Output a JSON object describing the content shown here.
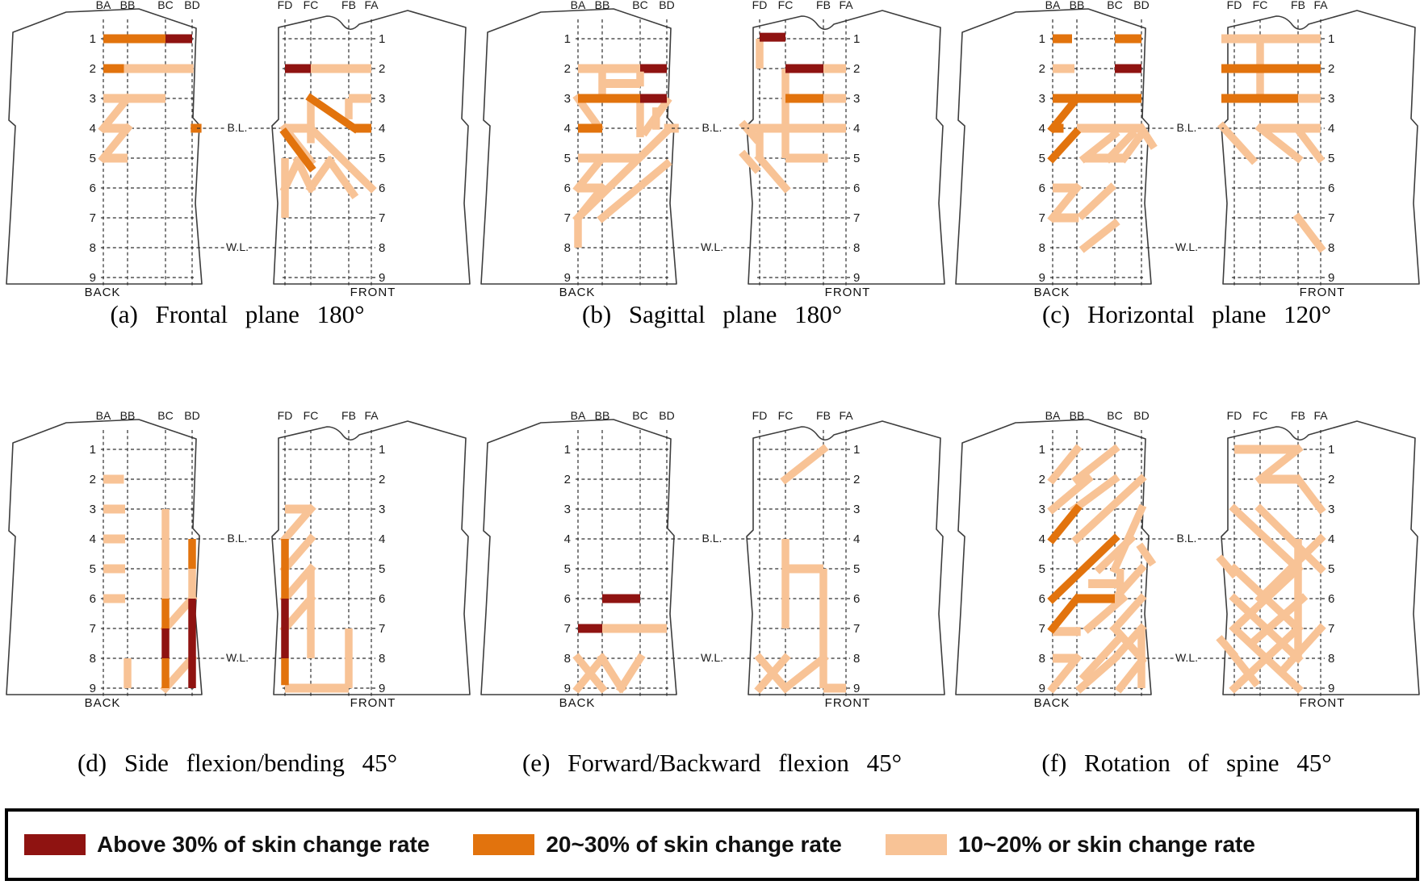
{
  "colors": {
    "high": "#8f1311",
    "mid": "#e2730d",
    "low": "#f8c396",
    "outline": "#3d3d3d",
    "grid": "#2e2e2e",
    "text": "#1a1a1a"
  },
  "labels": {
    "back": "BACK",
    "front": "FRONT",
    "bust_line": "B.L.",
    "waist_line": "W.L.",
    "back_columns": [
      "BA",
      "BB",
      "BC",
      "BD"
    ],
    "front_columns": [
      "FD",
      "FC",
      "FB",
      "FA"
    ],
    "rows": [
      "1",
      "2",
      "3",
      "4",
      "5",
      "6",
      "7",
      "8",
      "9"
    ]
  },
  "legend": {
    "items": [
      {
        "color_key": "high",
        "label": "Above 30% of skin change rate"
      },
      {
        "color_key": "mid",
        "label": "20~30% of skin change rate"
      },
      {
        "color_key": "low",
        "label": "10~20% or skin change rate"
      }
    ]
  },
  "panels": [
    {
      "id": "a",
      "caption": "(a) Frontal plane 180°",
      "back_segments": [
        [
          "mid",
          0,
          1,
          2,
          1
        ],
        [
          "high",
          2,
          1,
          3,
          1
        ],
        [
          "mid",
          0,
          2,
          0.85,
          2
        ],
        [
          "low",
          0.85,
          2,
          3.05,
          2
        ],
        [
          "low",
          0,
          3,
          2,
          3
        ],
        [
          "low",
          1,
          3,
          0,
          4
        ],
        [
          "low",
          0,
          4,
          1,
          4
        ],
        [
          "low",
          1,
          4,
          0,
          5
        ],
        [
          "low",
          0,
          5,
          1,
          5
        ],
        [
          "mid",
          2.95,
          4,
          3.35,
          4
        ]
      ],
      "front_segments": [
        [
          "high",
          0,
          2,
          1,
          2
        ],
        [
          "low",
          1,
          2,
          3,
          2
        ],
        [
          "low",
          2,
          3,
          3,
          3
        ],
        [
          "low",
          1,
          3,
          1,
          4.5
        ],
        [
          "low",
          2,
          3,
          2,
          3.7
        ],
        [
          "low",
          0,
          4,
          1.1,
          4
        ],
        [
          "low",
          0,
          4,
          1,
          5.1
        ],
        [
          "low",
          1,
          4,
          3,
          6
        ],
        [
          "low",
          0,
          5,
          0,
          7
        ],
        [
          "low",
          0,
          6,
          0.5,
          5.1
        ],
        [
          "low",
          0.5,
          5.1,
          1,
          6
        ],
        [
          "low",
          1,
          6,
          1.5,
          5.1
        ],
        [
          "low",
          1.5,
          5.1,
          2.2,
          6.2
        ],
        [
          "mid",
          1,
          3,
          2.25,
          4
        ],
        [
          "mid",
          2.25,
          4,
          3,
          4
        ],
        [
          "mid",
          0,
          4.15,
          1,
          5.3
        ]
      ]
    },
    {
      "id": "b",
      "caption": "(b) Sagittal plane 180°",
      "back_segments": [
        [
          "low",
          0,
          2,
          2,
          2
        ],
        [
          "high",
          2,
          2,
          3,
          2
        ],
        [
          "low",
          1,
          2,
          1,
          3
        ],
        [
          "low",
          1,
          2.5,
          2,
          2.5
        ],
        [
          "low",
          2,
          2.1,
          2,
          2.6
        ],
        [
          "low",
          0,
          3,
          0.85,
          3.95
        ],
        [
          "low",
          2,
          3.1,
          2,
          4.3
        ],
        [
          "low",
          3,
          3.1,
          2.2,
          4.1
        ],
        [
          "low",
          2.6,
          3.3,
          2.6,
          4.05
        ],
        [
          "low",
          2.9,
          4,
          3.45,
          4
        ],
        [
          "low",
          0,
          5,
          2,
          5
        ],
        [
          "low",
          3,
          4.1,
          0,
          7
        ],
        [
          "low",
          3,
          5.2,
          1,
          7
        ],
        [
          "low",
          1,
          5,
          0,
          6
        ],
        [
          "low",
          0,
          6,
          1,
          6
        ],
        [
          "low",
          1,
          6,
          0,
          7
        ],
        [
          "low",
          0,
          7,
          0,
          8
        ],
        [
          "mid",
          0,
          3,
          2,
          3
        ],
        [
          "high",
          2,
          3,
          3,
          3
        ],
        [
          "mid",
          0,
          4,
          1,
          4
        ]
      ],
      "front_segments": [
        [
          "low",
          0,
          1,
          0,
          2
        ],
        [
          "low",
          2,
          2,
          3,
          2
        ],
        [
          "low",
          2,
          3,
          3,
          3
        ],
        [
          "low",
          1,
          2,
          1,
          5
        ],
        [
          "low",
          -0.5,
          4,
          3,
          4
        ],
        [
          "low",
          0,
          4,
          0,
          5
        ],
        [
          "low",
          1,
          5,
          2.2,
          5
        ],
        [
          "low",
          0,
          5,
          1,
          6
        ],
        [
          "low",
          -0.6,
          3.9,
          -0.15,
          4.35
        ],
        [
          "low",
          -0.6,
          4.9,
          -0.15,
          5.35
        ],
        [
          "high",
          0,
          0.95,
          1,
          0.95
        ],
        [
          "high",
          1,
          2,
          2,
          2
        ],
        [
          "mid",
          1,
          3,
          2,
          3
        ]
      ]
    },
    {
      "id": "c",
      "caption": "(c) Horizontal plane 120°",
      "back_segments": [
        [
          "low",
          0,
          2,
          0.9,
          2
        ],
        [
          "low",
          1,
          4,
          3,
          4
        ],
        [
          "low",
          3,
          4,
          3.4,
          4.55
        ],
        [
          "low",
          2,
          4.2,
          1.2,
          5
        ],
        [
          "low",
          1.2,
          5,
          2.4,
          5
        ],
        [
          "low",
          2.65,
          4.2,
          1.85,
          5
        ],
        [
          "low",
          3,
          4.2,
          2.35,
          5
        ],
        [
          "low",
          0,
          6,
          1,
          6
        ],
        [
          "low",
          1,
          6,
          0,
          7
        ],
        [
          "low",
          0,
          7,
          1.05,
          7
        ],
        [
          "low",
          1.9,
          6,
          1.15,
          6.9
        ],
        [
          "low",
          2,
          7.2,
          1.2,
          8
        ],
        [
          "mid",
          0,
          1,
          0.8,
          1
        ],
        [
          "mid",
          2,
          1,
          3,
          1
        ],
        [
          "high",
          2,
          2,
          3,
          2
        ],
        [
          "mid",
          0,
          3,
          3,
          3
        ],
        [
          "mid",
          1,
          3,
          0,
          4
        ],
        [
          "mid",
          0,
          4,
          0.45,
          4
        ],
        [
          "mid",
          0.95,
          4.15,
          0,
          5
        ]
      ],
      "front_segments": [
        [
          "low",
          -0.5,
          1,
          3,
          1
        ],
        [
          "low",
          1,
          1,
          1,
          3
        ],
        [
          "low",
          2,
          3,
          3,
          3
        ],
        [
          "low",
          1,
          4,
          3,
          4
        ],
        [
          "low",
          -0.45,
          3.95,
          0.7,
          5.05
        ],
        [
          "low",
          1,
          4,
          2,
          5
        ],
        [
          "low",
          2.05,
          4.1,
          2.95,
          5
        ],
        [
          "low",
          2,
          7,
          3,
          8
        ],
        [
          "mid",
          -0.5,
          2,
          3,
          2
        ],
        [
          "mid",
          -0.5,
          3,
          2,
          3
        ]
      ]
    },
    {
      "id": "d",
      "caption": "(d) Side flexion/bending 45°",
      "back_segments": [
        [
          "low",
          0,
          2,
          0.85,
          2
        ],
        [
          "low",
          0,
          3,
          0.9,
          3
        ],
        [
          "low",
          0,
          4,
          0.9,
          4
        ],
        [
          "low",
          0,
          5,
          0.9,
          5
        ],
        [
          "low",
          0,
          6,
          0.9,
          6
        ],
        [
          "low",
          2,
          3,
          2,
          6
        ],
        [
          "low",
          3,
          5,
          3,
          6
        ],
        [
          "low",
          3,
          6,
          2,
          7
        ],
        [
          "low",
          3,
          8,
          2,
          9
        ],
        [
          "low",
          1,
          8,
          1,
          9
        ],
        [
          "mid",
          2,
          6,
          2,
          7
        ],
        [
          "mid",
          2,
          8,
          2,
          9
        ],
        [
          "mid",
          3,
          4,
          3,
          5
        ],
        [
          "high",
          2,
          7,
          2,
          8
        ],
        [
          "high",
          3,
          6,
          3,
          9
        ]
      ],
      "front_segments": [
        [
          "low",
          0,
          3,
          1,
          3
        ],
        [
          "low",
          1,
          3,
          0,
          4
        ],
        [
          "low",
          1,
          4,
          0,
          5
        ],
        [
          "low",
          1,
          5,
          0,
          6
        ],
        [
          "low",
          1,
          6,
          0,
          7
        ],
        [
          "low",
          1,
          5,
          1,
          8
        ],
        [
          "low",
          2,
          7,
          2,
          9
        ],
        [
          "low",
          0,
          9,
          2,
          9
        ],
        [
          "mid",
          0,
          4,
          0,
          6
        ],
        [
          "mid",
          0,
          8,
          0,
          8.9
        ],
        [
          "high",
          0,
          6,
          0,
          8
        ]
      ]
    },
    {
      "id": "e",
      "caption": "(e) Forward/Backward flexion 45°",
      "back_segments": [
        [
          "low",
          1,
          7,
          3,
          7
        ],
        [
          "low",
          0,
          8,
          1,
          9
        ],
        [
          "low",
          1,
          8,
          0,
          9
        ],
        [
          "low",
          1,
          8,
          1.5,
          9
        ],
        [
          "low",
          1.5,
          9,
          2,
          8
        ],
        [
          "high",
          1,
          6,
          2,
          6
        ],
        [
          "high",
          0,
          7,
          1,
          7
        ]
      ],
      "front_segments": [
        [
          "low",
          2,
          1,
          1,
          2
        ],
        [
          "low",
          1,
          4,
          1,
          7
        ],
        [
          "low",
          1,
          5,
          2,
          5
        ],
        [
          "low",
          2,
          5,
          2,
          9
        ],
        [
          "low",
          2,
          9,
          3,
          9
        ],
        [
          "low",
          0,
          8,
          1,
          9
        ],
        [
          "low",
          1,
          8,
          0,
          9
        ],
        [
          "low",
          2,
          8,
          1,
          9
        ]
      ]
    },
    {
      "id": "f",
      "caption": "(f) Rotation of spine 45°",
      "back_segments": [
        [
          "low",
          1,
          1,
          0,
          2
        ],
        [
          "low",
          2,
          1,
          1,
          2
        ],
        [
          "low",
          1.3,
          2,
          0,
          3
        ],
        [
          "low",
          2,
          2,
          0.9,
          3
        ],
        [
          "low",
          3,
          2,
          1,
          4
        ],
        [
          "low",
          3,
          3,
          2,
          5
        ],
        [
          "low",
          2.6,
          4,
          1.6,
          5
        ],
        [
          "low",
          3,
          4.3,
          3.35,
          4.75
        ],
        [
          "low",
          1.3,
          5.5,
          2.2,
          5.5
        ],
        [
          "low",
          2.2,
          5,
          2.2,
          5.9
        ],
        [
          "low",
          3,
          5,
          2,
          6
        ],
        [
          "low",
          3,
          6,
          2,
          7
        ],
        [
          "low",
          2.3,
          6,
          1.3,
          7
        ],
        [
          "low",
          0,
          7.1,
          1.1,
          7.1
        ],
        [
          "low",
          2,
          7,
          3,
          8
        ],
        [
          "low",
          3,
          7,
          2,
          8
        ],
        [
          "low",
          3,
          7,
          3,
          9
        ],
        [
          "low",
          0,
          8,
          1,
          8
        ],
        [
          "low",
          1,
          8,
          0,
          9
        ],
        [
          "low",
          2,
          8,
          1.1,
          9
        ],
        [
          "low",
          3,
          8.1,
          2.2,
          9
        ],
        [
          "low",
          2.2,
          7.3,
          1.2,
          8.6
        ],
        [
          "mid",
          1,
          3,
          0,
          4
        ],
        [
          "mid",
          2,
          4,
          0,
          6
        ],
        [
          "mid",
          1,
          6,
          2,
          6
        ],
        [
          "mid",
          1,
          6,
          0,
          7
        ]
      ],
      "front_segments": [
        [
          "low",
          0,
          1,
          2,
          1
        ],
        [
          "low",
          2,
          1,
          1,
          2
        ],
        [
          "low",
          1,
          2,
          2,
          2
        ],
        [
          "low",
          2,
          2,
          3,
          3
        ],
        [
          "low",
          0,
          3,
          2,
          5
        ],
        [
          "low",
          1,
          3,
          3,
          5
        ],
        [
          "low",
          3,
          4,
          1,
          6
        ],
        [
          "low",
          0,
          5,
          2,
          7
        ],
        [
          "low",
          2,
          5,
          0,
          7
        ],
        [
          "low",
          0,
          6,
          2,
          8
        ],
        [
          "low",
          2.2,
          6,
          0.8,
          7.4
        ],
        [
          "low",
          0,
          7,
          2,
          9
        ],
        [
          "low",
          2,
          7,
          0,
          9
        ],
        [
          "low",
          -0.3,
          7.6,
          0.8,
          8.8
        ],
        [
          "low",
          3,
          7,
          1.6,
          8.4
        ],
        [
          "low",
          2,
          4,
          2,
          8
        ],
        [
          "low",
          -0.5,
          4.7,
          -0.05,
          5.15
        ],
        [
          "low",
          -0.5,
          7.4,
          -0.05,
          7.85
        ]
      ]
    }
  ]
}
